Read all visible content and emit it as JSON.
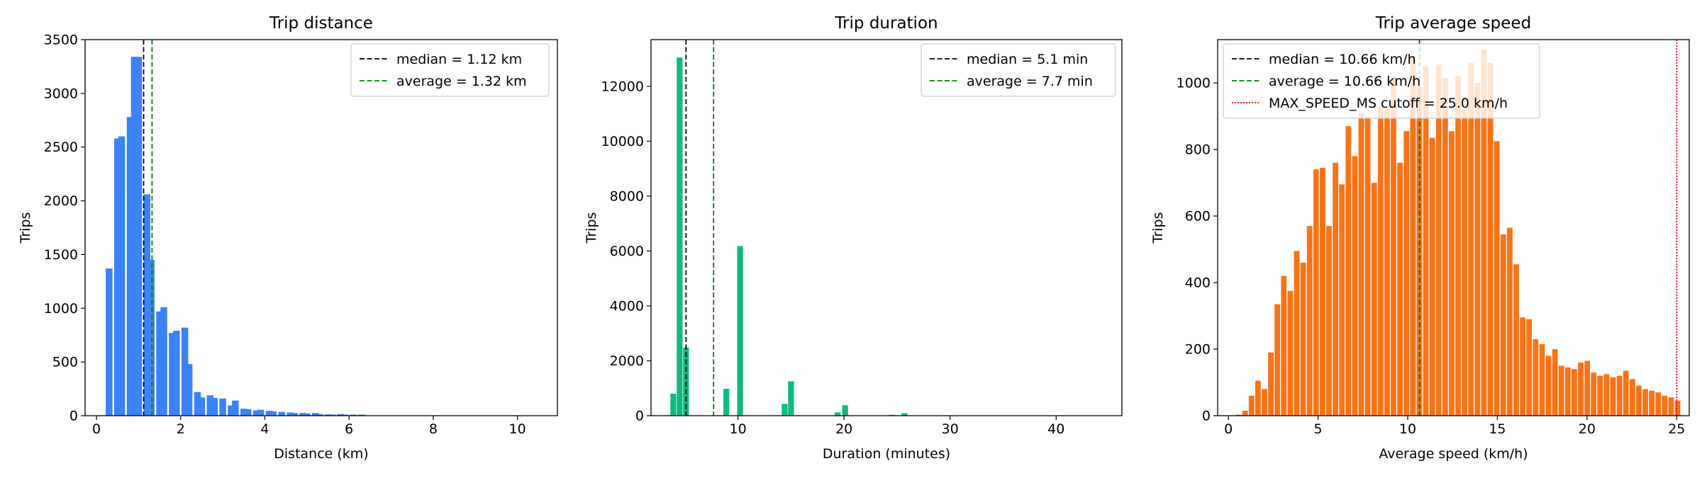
{
  "chart_data": [
    {
      "type": "bar",
      "title": "Trip distance",
      "xlabel": "Distance (km)",
      "ylabel": "Trips",
      "xlim": [
        -0.27,
        10.95
      ],
      "ylim": [
        0,
        3500
      ],
      "xticks": [
        0,
        2,
        4,
        6,
        8,
        10
      ],
      "yticks": [
        0,
        500,
        1000,
        1500,
        2000,
        2500,
        3000,
        3500
      ],
      "color": "#3b82f6",
      "bar_width": 0.16,
      "x": [
        0.3,
        0.5,
        0.6,
        0.8,
        0.9,
        1.0,
        1.2,
        1.3,
        1.5,
        1.6,
        1.8,
        1.9,
        2.1,
        2.2,
        2.4,
        2.5,
        2.7,
        2.8,
        3.0,
        3.2,
        3.3,
        3.5,
        3.6,
        3.8,
        3.9,
        4.1,
        4.2,
        4.4,
        4.6,
        4.7,
        4.9,
        5.0,
        5.2,
        5.3,
        5.5,
        5.6,
        5.8,
        5.9,
        6.1,
        6.3
      ],
      "values": [
        1370,
        2580,
        2600,
        2780,
        3340,
        3340,
        2060,
        1450,
        970,
        1010,
        770,
        790,
        820,
        480,
        220,
        170,
        190,
        165,
        160,
        95,
        140,
        65,
        60,
        50,
        55,
        45,
        40,
        35,
        30,
        25,
        25,
        20,
        25,
        15,
        12,
        10,
        15,
        10,
        10,
        10
      ],
      "reference_lines": [
        {
          "label": "median = 1.12 km",
          "x": 1.12,
          "color": "#000000",
          "style": "dashed"
        },
        {
          "label": "average = 1.32 km",
          "x": 1.32,
          "color": "#008000",
          "style": "dashed"
        }
      ],
      "legend_position": "top-right"
    },
    {
      "type": "bar",
      "title": "Trip duration",
      "xlabel": "Duration (minutes)",
      "ylabel": "Trips",
      "xlim": [
        1.8,
        46.2
      ],
      "ylim": [
        0,
        13700
      ],
      "xticks": [
        10,
        20,
        30,
        40
      ],
      "yticks": [
        0,
        2000,
        4000,
        6000,
        8000,
        10000,
        12000
      ],
      "color": "#10b981",
      "bar_width": 0.55,
      "x": [
        3.9,
        4.5,
        5.1,
        8.9,
        10.2,
        14.4,
        15.0,
        19.4,
        20.1,
        24.5,
        25.7
      ],
      "values": [
        800,
        13050,
        2480,
        980,
        6180,
        430,
        1250,
        120,
        380,
        30,
        90
      ],
      "reference_lines": [
        {
          "label": "median = 5.1 min",
          "x": 5.1,
          "color": "#000000",
          "style": "dashed"
        },
        {
          "label": "average = 7.7 min",
          "x": 7.7,
          "color": "#008000",
          "style": "dashed"
        }
      ],
      "legend_position": "top-right"
    },
    {
      "type": "bar",
      "title": "Trip average speed",
      "xlabel": "Average speed (km/h)",
      "ylabel": "Trips",
      "xlim": [
        -0.6,
        25.7
      ],
      "ylim": [
        0,
        1130
      ],
      "xticks": [
        0,
        5,
        10,
        15,
        20,
        25
      ],
      "yticks": [
        0,
        200,
        400,
        600,
        800,
        1000
      ],
      "color": "#f97316",
      "bar_width": 0.31,
      "x": [
        0.57,
        0.93,
        1.29,
        1.65,
        2.01,
        2.37,
        2.73,
        3.09,
        3.45,
        3.81,
        4.17,
        4.53,
        4.89,
        5.25,
        5.61,
        5.97,
        6.33,
        6.69,
        7.05,
        7.41,
        7.77,
        8.13,
        8.49,
        8.85,
        9.21,
        9.57,
        9.93,
        10.29,
        10.65,
        11.01,
        11.37,
        11.73,
        12.09,
        12.45,
        12.81,
        13.17,
        13.53,
        13.89,
        14.25,
        14.61,
        14.97,
        15.33,
        15.69,
        16.05,
        16.41,
        16.77,
        17.13,
        17.49,
        17.85,
        18.21,
        18.57,
        18.93,
        19.29,
        19.65,
        20.01,
        20.37,
        20.73,
        21.09,
        21.45,
        21.81,
        22.17,
        22.53,
        22.89,
        23.25,
        23.61,
        23.97,
        24.33,
        24.69,
        25.05
      ],
      "values": [
        3,
        15,
        60,
        105,
        80,
        190,
        335,
        420,
        375,
        495,
        460,
        570,
        740,
        745,
        570,
        760,
        695,
        870,
        780,
        910,
        900,
        700,
        930,
        920,
        1020,
        760,
        855,
        1080,
        985,
        1050,
        835,
        1055,
        1015,
        855,
        1020,
        920,
        1060,
        1000,
        1100,
        1060,
        825,
        545,
        565,
        455,
        295,
        290,
        230,
        215,
        180,
        200,
        150,
        145,
        140,
        160,
        165,
        130,
        120,
        125,
        115,
        120,
        135,
        110,
        90,
        80,
        75,
        70,
        60,
        55,
        45
      ],
      "reference_lines": [
        {
          "label": "median = 10.66 km/h",
          "x": 10.66,
          "color": "#000000",
          "style": "dashed"
        },
        {
          "label": "average = 10.66 km/h",
          "x": 10.66,
          "color": "#008000",
          "style": "dashed"
        },
        {
          "label": "MAX_SPEED_MS cutoff = 25.0 km/h",
          "x": 25.0,
          "color": "#ff0000",
          "style": "dotted"
        }
      ],
      "legend_position": "top-left"
    }
  ]
}
